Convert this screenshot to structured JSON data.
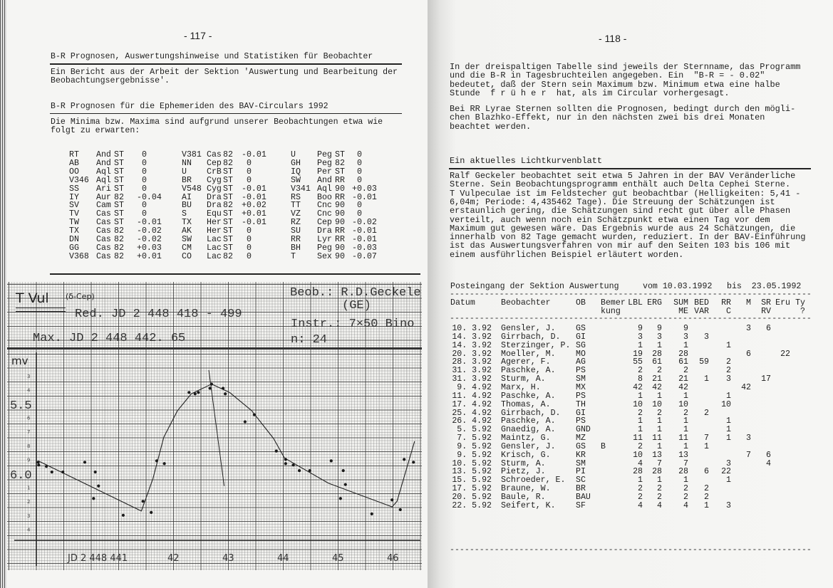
{
  "left_page": {
    "page_number": "- 117 -",
    "headline": "B-R Prognosen, Auswertungshinweise und Statistiken für Beobachter",
    "intro": [
      "Ein Bericht aus der Arbeit der Sektion 'Auswertung und Bearbeitung der",
      "Beobachtungsergebnisse'."
    ],
    "section_title": "B-R Prognosen für die Ephemeriden des BAV-Circulars 1992",
    "section_text": [
      "Die Minima bzw. Maxima sind aufgrund unserer Beobachtungen etwa wie",
      "folgt zu erwarten:"
    ],
    "br_table": [
      [
        [
          "RT",
          "And",
          "ST",
          "0"
        ],
        [
          "V381",
          "Cas",
          "82",
          "-0.01"
        ],
        [
          "U",
          "Peg",
          "ST",
          "0"
        ]
      ],
      [
        [
          "AB",
          "And",
          "ST",
          "0"
        ],
        [
          "NN",
          "Cep",
          "82",
          "0"
        ],
        [
          "GH",
          "Peg",
          "82",
          "0"
        ]
      ],
      [
        [
          "OO",
          "Aql",
          "ST",
          "0"
        ],
        [
          "U",
          "CrB",
          "ST",
          "0"
        ],
        [
          "IQ",
          "Per",
          "ST",
          "0"
        ]
      ],
      [
        [
          "V346",
          "Aql",
          "ST",
          "0"
        ],
        [
          "BR",
          "Cyg",
          "ST",
          "0"
        ],
        [
          "SW",
          "And",
          "RR",
          "0"
        ]
      ],
      [
        [
          "SS",
          "Ari",
          "ST",
          "0"
        ],
        [
          "V548",
          "Cyg",
          "ST",
          "-0.01"
        ],
        [
          "V341",
          "Aql",
          "90",
          "+0.03"
        ]
      ],
      [
        [
          "IY",
          "Aur",
          "82",
          "-0.04"
        ],
        [
          "AI",
          "Dra",
          "ST",
          "-0.01"
        ],
        [
          "RS",
          "Boo",
          "RR",
          "-0.01"
        ]
      ],
      [
        [
          "SV",
          "Cam",
          "ST",
          "0"
        ],
        [
          "BU",
          "Dra",
          "82",
          "+0.02"
        ],
        [
          "TT",
          "Cnc",
          "90",
          "0"
        ]
      ],
      [
        [
          "TV",
          "Cas",
          "ST",
          "0"
        ],
        [
          "S",
          "Equ",
          "ST",
          "+0.01"
        ],
        [
          "VZ",
          "Cnc",
          "90",
          "0"
        ]
      ],
      [
        [
          "TW",
          "Cas",
          "ST",
          "-0.01"
        ],
        [
          "TX",
          "Her",
          "ST",
          "-0.01"
        ],
        [
          "RZ",
          "Cep",
          "90",
          "-0.02"
        ]
      ],
      [
        [
          "TX",
          "Cas",
          "82",
          "-0.02"
        ],
        [
          "AK",
          "Her",
          "ST",
          "0"
        ],
        [
          "SU",
          "Dra",
          "RR",
          "-0.01"
        ]
      ],
      [
        [
          "DN",
          "Cas",
          "82",
          "-0.02"
        ],
        [
          "SW",
          "Lac",
          "ST",
          "0"
        ],
        [
          "RR",
          "Lyr",
          "RR",
          "-0.01"
        ]
      ],
      [
        [
          "GG",
          "Cas",
          "82",
          "+0.03"
        ],
        [
          "CM",
          "Lac",
          "ST",
          "0"
        ],
        [
          "BH",
          "Peg",
          "90",
          "-0.03"
        ]
      ],
      [
        [
          "V368",
          "Cas",
          "82",
          "+0.01"
        ],
        [
          "CO",
          "Lac",
          "82",
          "0"
        ],
        [
          "T",
          "Sex",
          "90",
          "-0.07"
        ]
      ]
    ],
    "lightcurve_sheet": {
      "star": "T Vul",
      "type": "(δ-Cep)",
      "reduction": "Red. JD 2 448 418 - 499",
      "maximum": "Max. JD 2 448 442. 65",
      "observer": "Beob.: R.D.Geckele",
      "observer_code": "(GE)",
      "instrument": "Instr.: 7×50 Bino",
      "count": "n: 24"
    }
  },
  "chart_data": {
    "type": "scatter",
    "ylabel": "mv",
    "y_inverted": true,
    "ylim": [
      5.25,
      6.45
    ],
    "xlim": [
      439.45,
      446.5
    ],
    "y_tick_labels": [
      {
        "value": 5.5,
        "label": "5.5"
      },
      {
        "value": 6.0,
        "label": "6.0"
      }
    ],
    "y_minor_labels": [
      {
        "value": 5.3,
        "label": "3"
      },
      {
        "value": 5.4,
        "label": "4"
      },
      {
        "value": 5.6,
        "label": "6"
      },
      {
        "value": 5.7,
        "label": "7"
      },
      {
        "value": 5.8,
        "label": "8"
      },
      {
        "value": 5.9,
        "label": "9"
      },
      {
        "value": 6.1,
        "label": "1"
      },
      {
        "value": 6.2,
        "label": "2"
      },
      {
        "value": 6.3,
        "label": "3"
      },
      {
        "value": 6.4,
        "label": "4"
      }
    ],
    "x_tick_labels": [
      {
        "value": 441,
        "label": "JD 2 448 441"
      },
      {
        "value": 442,
        "label": "42"
      },
      {
        "value": 443,
        "label": "43"
      },
      {
        "value": 444,
        "label": "44"
      },
      {
        "value": 445,
        "label": "45"
      },
      {
        "value": 446,
        "label": "46"
      }
    ],
    "points": [
      [
        439.54,
        5.92
      ],
      [
        439.55,
        5.94
      ],
      [
        439.69,
        5.95
      ],
      [
        439.79,
        5.99
      ],
      [
        439.99,
        5.99
      ],
      [
        440.39,
        5.92
      ],
      [
        440.55,
        6.18
      ],
      [
        440.58,
        5.99
      ],
      [
        440.64,
        6.09
      ],
      [
        441.09,
        6.3
      ],
      [
        441.45,
        6.2
      ],
      [
        441.6,
        6.28
      ],
      [
        441.7,
        5.91
      ],
      [
        441.84,
        5.93
      ],
      [
        442.29,
        5.42
      ],
      [
        442.4,
        5.43
      ],
      [
        442.46,
        5.42
      ],
      [
        442.67,
        5.39
      ],
      [
        442.7,
        5.36
      ],
      [
        442.91,
        5.39
      ],
      [
        442.95,
        5.43
      ],
      [
        443.31,
        5.63
      ],
      [
        443.48,
        5.58
      ],
      [
        443.88,
        5.84
      ],
      [
        444.05,
        5.9
      ],
      [
        444.05,
        5.93
      ],
      [
        444.19,
        5.94
      ],
      [
        444.3,
        5.98
      ],
      [
        444.49,
        5.98
      ],
      [
        444.88,
        5.91
      ],
      [
        445.05,
        6.18
      ],
      [
        445.1,
        5.98
      ],
      [
        445.14,
        6.08
      ],
      [
        445.62,
        6.29
      ],
      [
        445.99,
        6.19
      ],
      [
        446.14,
        6.26
      ],
      [
        446.21,
        5.9
      ],
      [
        446.38,
        5.92
      ]
    ],
    "fitted_curve": [
      [
        439.54,
        5.91
      ],
      [
        441.42,
        6.27
      ],
      [
        441.63,
        6.04
      ],
      [
        441.83,
        5.74
      ],
      [
        442.08,
        5.55
      ],
      [
        442.33,
        5.43
      ],
      [
        442.7,
        5.36
      ],
      [
        443.03,
        5.42
      ],
      [
        443.43,
        5.55
      ],
      [
        443.83,
        5.75
      ],
      [
        444.03,
        5.89
      ],
      [
        444.83,
        6.07
      ],
      [
        445.99,
        6.24
      ],
      [
        446.08,
        6.2
      ],
      [
        446.4,
        5.77
      ]
    ],
    "max_marker": [
      [
        442.65,
        5.26
      ],
      [
        442.93,
        6.09
      ]
    ]
  },
  "right_page": {
    "page_number": "- 118 -",
    "para1": [
      "In der dreispaltigen Tabelle sind jeweils der Sternname, das Programm",
      "und die B-R in Tagesbruchteilen angegeben. Ein  \"B-R = - 0.02\"",
      "bedeutet, daß der Stern sein Maximum bzw. Minimum etwa eine halbe",
      "Stunde  f r ü h e r  hat, als im Circular vorhergesagt."
    ],
    "para2": [
      "Bei RR Lyrae Sternen sollten die Prognosen, bedingt durch den mögli-",
      "chen Blazhko-Effekt, nur in den nächsten zwei bis drei Monaten",
      "beachtet werden."
    ],
    "section_title": "Ein aktuelles Lichtkurvenblatt",
    "para3": [
      "Ralf Geckeler beobachtet seit etwa 5 Jahren in der BAV Veränderliche",
      "Sterne. Sein Beobachtungsprogramm enthält auch Delta Cephei Sterne.",
      "T Vulpeculae ist im Feldstecher gut beobachtbar (Helligkeiten: 5,41 -",
      "6,04m; Periode: 4,435462 Tage). Die Streuung der Schätzungen ist",
      "erstaunlich gering, die Schätzungen sind recht gut über alle Phasen",
      "verteilt, auch wenn noch ein Schätzpunkt etwa einen Tag vor dem",
      "Maximum gut gewesen wäre. Das Ergebnis wurde aus 24 Schätzungen, die",
      "innerhalb von 82 Tage gemacht wurden, reduziert. In der BAV-Einführung",
      "ist das Auswertungsverfahren von mir auf den Seiten 103 bis 106 mit",
      "einem ausführlichen Beispiel erläutert worden."
    ],
    "posteingang": {
      "title": "Posteingang der Sektion Auswertung",
      "from": "vom 10.03.1992",
      "to": "bis  23.05.1992",
      "headers": [
        [
          "Datum",
          ""
        ],
        [
          "Beobachter",
          ""
        ],
        [
          "OB",
          ""
        ],
        [
          "Bemer",
          "kung"
        ],
        [
          "LBL",
          ""
        ],
        [
          "ERG",
          ""
        ],
        [
          "SUM",
          "ME"
        ],
        [
          "BED",
          "VAR"
        ],
        [
          "RR",
          "C"
        ],
        [
          "M",
          ""
        ],
        [
          "SR",
          "RV"
        ],
        [
          "Eru",
          ""
        ],
        [
          "Ty",
          "?"
        ]
      ],
      "rows": [
        [
          "10. 3.92",
          "Gensler, J.",
          "GS",
          "",
          "9",
          "9",
          "9",
          "",
          "",
          "3",
          "6",
          "",
          ""
        ],
        [
          "14. 3.92",
          "Girrbach, D.",
          "GI",
          "",
          "3",
          "3",
          "3",
          "3",
          "",
          "",
          "",
          "",
          ""
        ],
        [
          "14. 3.92",
          "Sterzinger, P.",
          "SG",
          "",
          "1",
          "1",
          "1",
          "",
          "1",
          "",
          "",
          "",
          ""
        ],
        [
          "20. 3.92",
          "Moeller, M.",
          "MO",
          "",
          "19",
          "28",
          "28",
          "",
          "",
          "6",
          "",
          "22",
          ""
        ],
        [
          "28. 3.92",
          "Agerer, F.",
          "AG",
          "",
          "55",
          "61",
          "61",
          "59",
          "2",
          "",
          "",
          "",
          ""
        ],
        [
          "31. 3.92",
          "Paschke, A.",
          "PS",
          "",
          "2",
          "2",
          "2",
          "",
          "2",
          "",
          "",
          "",
          ""
        ],
        [
          "31. 3.92",
          "Sturm, A.",
          "SM",
          "",
          "8",
          "21",
          "21",
          "1",
          "3",
          "",
          "17",
          "",
          ""
        ],
        [
          "9. 4.92",
          "Marx, H.",
          "MX",
          "",
          "42",
          "42",
          "42",
          "",
          "",
          "42",
          "",
          "",
          ""
        ],
        [
          "11. 4.92",
          "Paschke, A.",
          "PS",
          "",
          "1",
          "1",
          "1",
          "",
          "1",
          "",
          "",
          "",
          ""
        ],
        [
          "17. 4.92",
          "Thomas, A.",
          "TH",
          "",
          "10",
          "10",
          "10",
          "",
          "10",
          "",
          "",
          "",
          ""
        ],
        [
          "25. 4.92",
          "Girrbach, D.",
          "GI",
          "",
          "2",
          "2",
          "2",
          "2",
          "",
          "",
          "",
          "",
          ""
        ],
        [
          "26. 4.92",
          "Paschke, A.",
          "PS",
          "",
          "1",
          "1",
          "1",
          "",
          "1",
          "",
          "",
          "",
          ""
        ],
        [
          "5. 5.92",
          "Gnaedig, A.",
          "GND",
          "",
          "1",
          "1",
          "1",
          "",
          "1",
          "",
          "",
          "",
          ""
        ],
        [
          "7. 5.92",
          "Maintz, G.",
          "MZ",
          "",
          "11",
          "11",
          "11",
          "7",
          "1",
          "3",
          "",
          "",
          ""
        ],
        [
          "9. 5.92",
          "Gensler, J.",
          "GS",
          "B",
          "2",
          "1",
          "1",
          "1",
          "",
          "",
          "",
          "",
          ""
        ],
        [
          "9. 5.92",
          "Krisch, G.",
          "KR",
          "",
          "10",
          "13",
          "13",
          "",
          "",
          "7",
          "6",
          "",
          ""
        ],
        [
          "10. 5.92",
          "Sturm, A.",
          "SM",
          "",
          "4",
          "7",
          "7",
          "",
          "3",
          "",
          "4",
          "",
          ""
        ],
        [
          "13. 5.92",
          "Pietz, J.",
          "PI",
          "",
          "28",
          "28",
          "28",
          "6",
          "22",
          "",
          "",
          "",
          ""
        ],
        [
          "15. 5.92",
          "Schroeder, E.",
          "SC",
          "",
          "1",
          "1",
          "1",
          "",
          "1",
          "",
          "",
          "",
          ""
        ],
        [
          "17. 5.92",
          "Braune, W.",
          "BR",
          "",
          "2",
          "2",
          "2",
          "2",
          "",
          "",
          "",
          "",
          ""
        ],
        [
          "20. 5.92",
          "Baule, R.",
          "BAU",
          "",
          "2",
          "2",
          "2",
          "2",
          "",
          "",
          "",
          "",
          ""
        ],
        [
          "22. 5.92",
          "Seifert, K.",
          "SF",
          "",
          "4",
          "4",
          "4",
          "1",
          "3",
          "",
          "",
          "",
          ""
        ]
      ]
    }
  }
}
